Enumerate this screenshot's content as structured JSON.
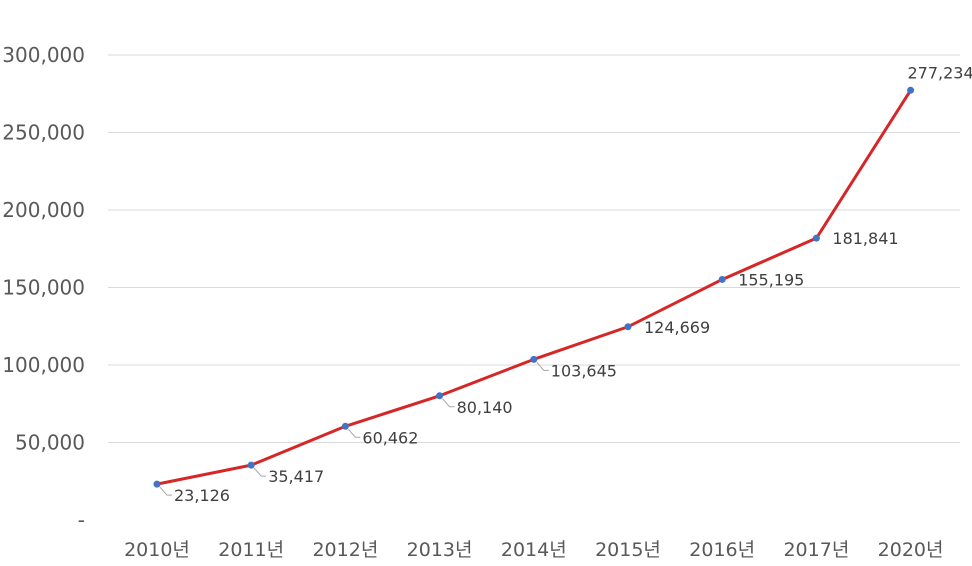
{
  "chart_data": {
    "type": "line",
    "title": "",
    "xlabel": "",
    "ylabel": "",
    "categories": [
      "2010년",
      "2011년",
      "2012년",
      "2013년",
      "2014년",
      "2015년",
      "2016년",
      "2017년",
      "2020년"
    ],
    "series": [
      {
        "values": [
          23126,
          35417,
          60462,
          80140,
          103645,
          124669,
          155195,
          181841,
          277234
        ],
        "labels": [
          "23,126",
          "35,417",
          "60,462",
          "80,140",
          "103,645",
          "124,669",
          "155,195",
          "181,841",
          "277,234"
        ]
      }
    ],
    "ylim": [
      0,
      300000
    ],
    "yticks": [
      0,
      50000,
      100000,
      150000,
      200000,
      250000,
      300000
    ],
    "ytick_labels": [
      "-",
      "50,000",
      "100,000",
      "150,000",
      "200,000",
      "250,000",
      "300,000"
    ],
    "grid": true,
    "legend": "none",
    "colors": {
      "line": "#d62728",
      "marker": "#4472c4"
    }
  }
}
